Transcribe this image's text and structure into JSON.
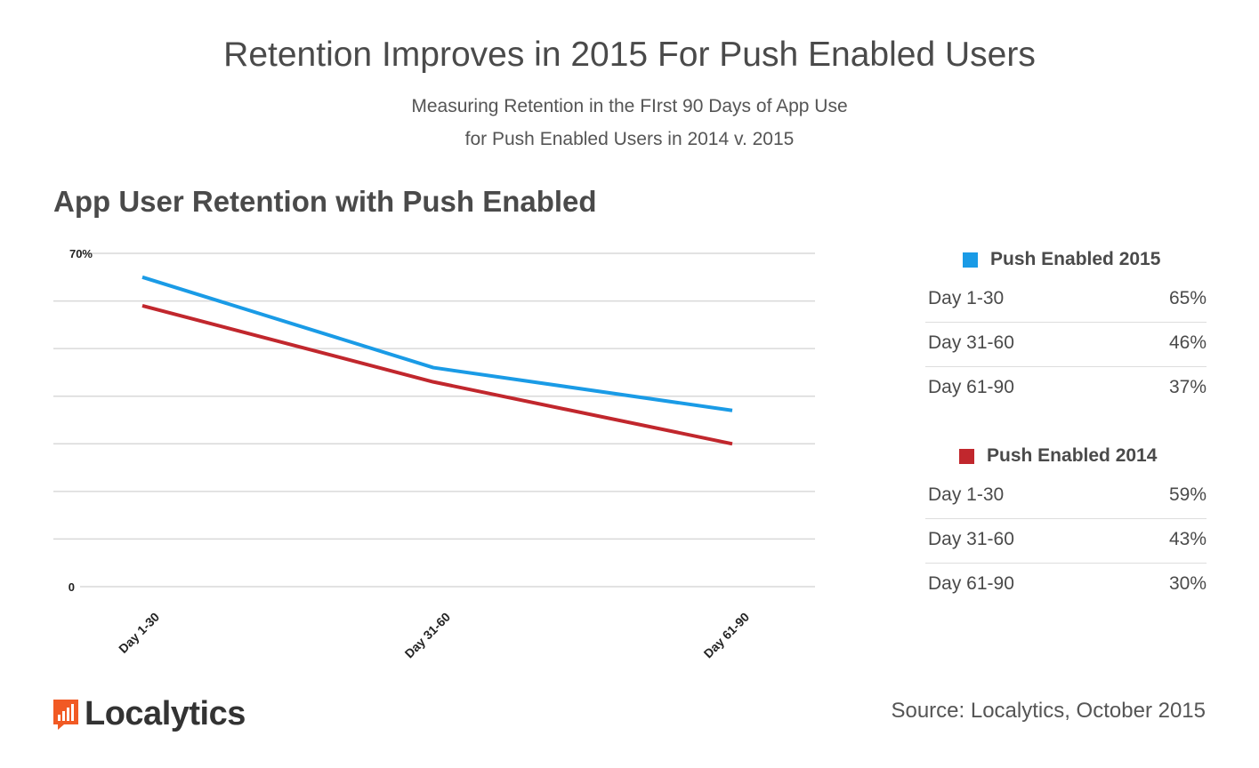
{
  "header": {
    "title": "Retention Improves in 2015 For Push Enabled Users",
    "subtitle_line1": "Measuring Retention in the FIrst 90 Days of App Use",
    "subtitle_line2": "for Push Enabled Users in 2014 v. 2015"
  },
  "chart_data": {
    "type": "line",
    "title": "App User Retention with Push Enabled",
    "categories": [
      "Day 1-30",
      "Day 31-60",
      "Day 61-90"
    ],
    "series": [
      {
        "name": "Push Enabled 2015",
        "values": [
          65,
          46,
          37
        ],
        "color": "#1a9be6"
      },
      {
        "name": "Push Enabled 2014",
        "values": [
          59,
          43,
          30
        ],
        "color": "#c1272d"
      }
    ],
    "ylim": [
      0,
      70
    ],
    "ytick_labels": [
      "0",
      "70%"
    ],
    "gridlines": 7,
    "xlabel": "",
    "ylabel": ""
  },
  "legend_tables": [
    {
      "name": "Push Enabled 2015",
      "color": "#1a9be6",
      "rows": [
        {
          "label": "Day 1-30",
          "value": "65%"
        },
        {
          "label": "Day 31-60",
          "value": "46%"
        },
        {
          "label": "Day 61-90",
          "value": "37%"
        }
      ]
    },
    {
      "name": "Push Enabled 2014",
      "color": "#c1272d",
      "rows": [
        {
          "label": "Day 1-30",
          "value": "59%"
        },
        {
          "label": "Day 31-60",
          "value": "43%"
        },
        {
          "label": "Day 61-90",
          "value": "30%"
        }
      ]
    }
  ],
  "footer": {
    "logo_text": "Localytics",
    "logo_color": "#f15a24",
    "source": "Source: Localytics, October 2015"
  }
}
